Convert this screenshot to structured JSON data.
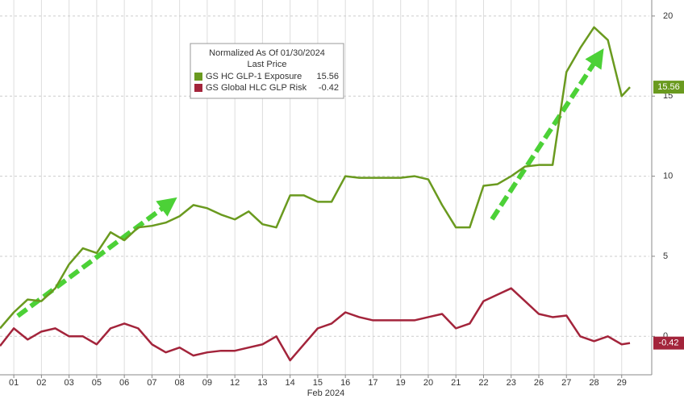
{
  "chart_data": {
    "type": "line",
    "legend_title": "Normalized As Of 01/30/2024",
    "legend_subtitle": "Last Price",
    "xlabel": "Feb 2024",
    "x": [
      -0.5,
      0,
      0.5,
      1,
      1.5,
      2,
      2.5,
      3,
      3.5,
      4,
      4.5,
      5,
      5.5,
      6,
      6.5,
      7,
      7.5,
      8,
      8.5,
      9,
      9.5,
      10,
      10.5,
      11,
      11.5,
      12,
      12.5,
      13,
      13.5,
      14,
      14.5,
      15,
      15.5,
      16,
      16.5,
      17,
      17.5,
      18,
      18.5,
      19,
      19.5,
      20,
      20.5,
      21,
      21.5,
      22,
      22.3
    ],
    "series": [
      {
        "name": "GS HC GLP-1 Exposure",
        "color": "#6a9a1f",
        "values": [
          0.5,
          1.5,
          2.3,
          2.2,
          3,
          4.5,
          5.5,
          5.2,
          6.5,
          6,
          6.8,
          6.9,
          7.1,
          7.5,
          8.2,
          8,
          7.6,
          7.3,
          7.8,
          7,
          6.8,
          8.8,
          8.8,
          8.4,
          8.4,
          10,
          9.9,
          9.9,
          9.9,
          9.9,
          10,
          9.8,
          8.2,
          6.8,
          6.8,
          9.4,
          9.5,
          10,
          10.6,
          10.7,
          10.7,
          16.5,
          18,
          19.3,
          18.5,
          15,
          15.56
        ]
      },
      {
        "name": "GS Global HLC GLP Risk",
        "color": "#a3243b",
        "values": [
          -0.6,
          0.5,
          -0.2,
          0.3,
          0.5,
          0,
          0,
          -0.5,
          0.5,
          0.8,
          0.5,
          -0.5,
          -1,
          -0.7,
          -1.2,
          -1,
          -0.9,
          -0.9,
          -0.7,
          -0.5,
          0,
          -1.5,
          -0.5,
          0.5,
          0.8,
          1.5,
          1.2,
          1,
          1,
          1,
          1,
          1.2,
          1.4,
          0.5,
          0.8,
          2.2,
          2.6,
          3,
          2.2,
          1.4,
          1.2,
          1.3,
          0,
          -0.3,
          0,
          -0.5,
          -0.42
        ]
      }
    ],
    "xlim": [
      -0.5,
      23
    ],
    "xticks": [
      {
        "value": 0,
        "label": "01"
      },
      {
        "value": 1,
        "label": "02"
      },
      {
        "value": 2,
        "label": "03"
      },
      {
        "value": 3,
        "label": "05"
      },
      {
        "value": 4,
        "label": "06"
      },
      {
        "value": 5,
        "label": "07"
      },
      {
        "value": 6,
        "label": "08"
      },
      {
        "value": 7,
        "label": "09"
      },
      {
        "value": 8,
        "label": "12"
      },
      {
        "value": 9,
        "label": "13"
      },
      {
        "value": 10,
        "label": "14"
      },
      {
        "value": 11,
        "label": "15"
      },
      {
        "value": 12,
        "label": "16"
      },
      {
        "value": 13,
        "label": "17"
      },
      {
        "value": 14,
        "label": "19"
      },
      {
        "value": 15,
        "label": "20"
      },
      {
        "value": 16,
        "label": "21"
      },
      {
        "value": 17,
        "label": "22"
      },
      {
        "value": 18,
        "label": "23"
      },
      {
        "value": 19,
        "label": "26"
      },
      {
        "value": 20,
        "label": "27"
      },
      {
        "value": 21,
        "label": "28"
      },
      {
        "value": 22,
        "label": "29"
      }
    ],
    "ylim": [
      -2.4,
      21
    ],
    "yticks": [
      0,
      5,
      10,
      15,
      20
    ],
    "grid": true
  }
}
